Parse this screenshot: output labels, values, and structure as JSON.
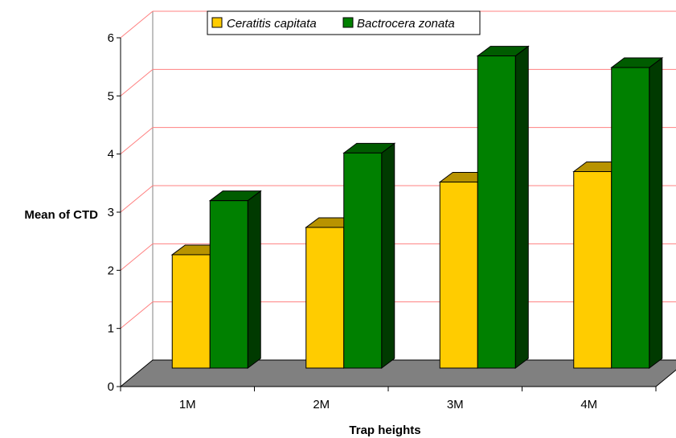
{
  "chart_data": {
    "type": "bar",
    "style": "3d-clustered-column",
    "categories": [
      "1M",
      "2M",
      "3M",
      "4M"
    ],
    "series": [
      {
        "name": "Ceratitis capitata",
        "values": [
          1.95,
          2.42,
          3.2,
          3.38
        ],
        "color": "#ffcc00"
      },
      {
        "name": "Bactrocera zonata",
        "values": [
          2.88,
          3.7,
          5.37,
          5.17
        ],
        "color": "#008000"
      }
    ],
    "xlabel": "Trap heights",
    "ylabel": "Mean of CTD",
    "ylim": [
      0,
      6
    ],
    "yticks": [
      "0",
      "1",
      "2",
      "3",
      "4",
      "5",
      "6"
    ],
    "grid": true,
    "gridline_color": "#ff8080",
    "floor_color": "#808080",
    "legend_position": "top"
  }
}
